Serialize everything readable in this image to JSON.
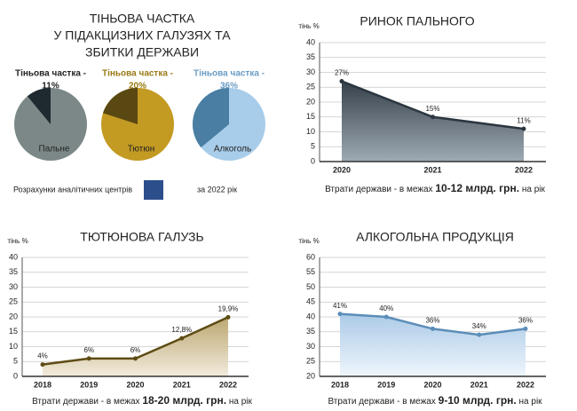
{
  "chart_data": [
    {
      "type": "pie",
      "title": [
        "ТІНЬОВА ЧАСТКА",
        "У ПІДАКЦИЗНИХ ГАЛУЗЯХ ТА",
        "ЗБИТКИ ДЕРЖАВИ"
      ],
      "heading": "Тіньова частка -",
      "categories": [
        "Пальне",
        "Тютюн",
        "Алкоголь"
      ],
      "values": [
        11,
        20,
        36
      ],
      "value_labels": [
        "11%",
        "20%",
        "36%"
      ],
      "colors": [
        "#1f2a30",
        "#5a4812",
        "#4a7ea3"
      ],
      "rest_colors": [
        "#7c8888",
        "#c39a22",
        "#a8cdea"
      ],
      "heading_colors": [
        "#222222",
        "#9a7a16",
        "#6a9cc4"
      ],
      "note": "Розрахунки аналітичних центрів",
      "note_suffix": "за 2022 рік"
    },
    {
      "type": "area",
      "title": "РИНОК ПАЛЬНОГО",
      "ylabel": "тінь %",
      "categories": [
        "2020",
        "2021",
        "2022"
      ],
      "values": [
        27,
        15,
        11
      ],
      "value_labels": [
        "27%",
        "15%",
        "11%"
      ],
      "ylim": [
        0,
        40
      ],
      "yticks": [
        0,
        5,
        10,
        15,
        20,
        25,
        30,
        35,
        40
      ],
      "color": "#2b3640",
      "fill": "#4d5a66",
      "grid": true,
      "caption": [
        "Втрати держави - в межах",
        "10-12 млрд. грн.",
        "на рік"
      ]
    },
    {
      "type": "area",
      "title": "ТЮТЮНОВА ГАЛУЗЬ",
      "ylabel": "тінь %",
      "categories": [
        "2018",
        "2019",
        "2020",
        "2021",
        "2022"
      ],
      "values": [
        4,
        6,
        6,
        12.8,
        19.9
      ],
      "value_labels": [
        "4%",
        "6%",
        "6%",
        "12,8%",
        "19,9%"
      ],
      "ylim": [
        0,
        40
      ],
      "yticks": [
        0,
        5,
        10,
        15,
        20,
        25,
        30,
        35,
        40
      ],
      "color": "#5e4c14",
      "fill": "#d9c9a0",
      "grid": true,
      "caption": [
        "Втрати держави - в межах",
        "18-20 млрд. грн.",
        "на рік"
      ]
    },
    {
      "type": "area",
      "title": "АЛКОГОЛЬНА ПРОДУКЦІЯ",
      "ylabel": "тінь %",
      "categories": [
        "2018",
        "2019",
        "2020",
        "2021",
        "2022"
      ],
      "values": [
        41,
        40,
        36,
        34,
        36
      ],
      "value_labels": [
        "41%",
        "40%",
        "36%",
        "34%",
        "36%"
      ],
      "ylim": [
        20,
        60
      ],
      "yticks": [
        20,
        25,
        30,
        35,
        40,
        45,
        50,
        55,
        60
      ],
      "color": "#5b8db8",
      "fill": "#b9d6ee",
      "grid": true,
      "caption": [
        "Втрати держави - в межах",
        "9-10 млрд. грн.",
        "на рік"
      ]
    }
  ]
}
